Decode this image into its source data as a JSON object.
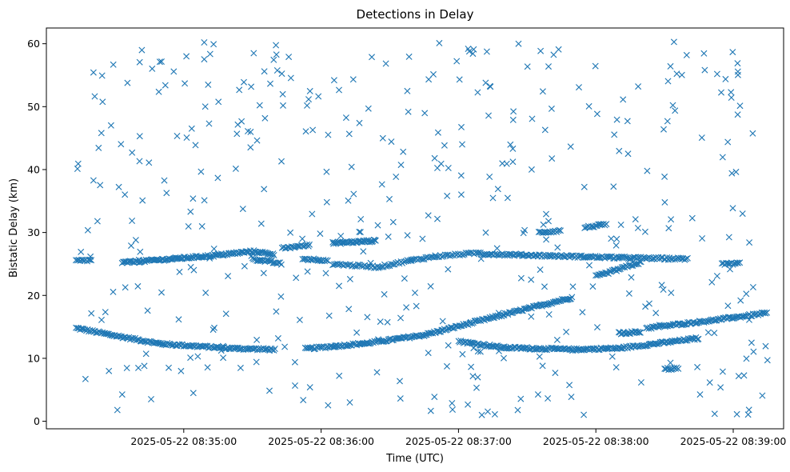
{
  "chart_data": {
    "type": "scatter",
    "title": "Detections in Delay",
    "xlabel": "Time (UTC)",
    "ylabel": "Bistatic Delay (km)",
    "marker": "x",
    "color": "#1f77b4",
    "grid": false,
    "xlim": [
      "2025-05-22 08:34:00",
      "2025-05-22 08:39:22"
    ],
    "ylim": [
      -1.2,
      62.5
    ],
    "x_ticks": [
      "2025-05-22 08:35:00",
      "2025-05-22 08:36:00",
      "2025-05-22 08:37:00",
      "2025-05-22 08:38:00",
      "2025-05-22 08:39:00"
    ],
    "y_ticks": [
      0,
      10,
      20,
      30,
      40,
      50,
      60
    ],
    "tracks": [
      {
        "points": [
          [
            "2025-05-22 08:34:13",
            14.8
          ],
          [
            "2025-05-22 08:34:30",
            13.6
          ],
          [
            "2025-05-22 08:34:50",
            12.3
          ],
          [
            "2025-05-22 08:35:20",
            11.6
          ],
          [
            "2025-05-22 08:35:40",
            11.4
          ]
        ],
        "step_s": 0.55
      },
      {
        "points": [
          [
            "2025-05-22 08:35:53",
            11.5
          ],
          [
            "2025-05-22 08:36:20",
            12.4
          ],
          [
            "2025-05-22 08:36:45",
            13.7
          ],
          [
            "2025-05-22 08:37:15",
            16.5
          ],
          [
            "2025-05-22 08:37:50",
            19.7
          ]
        ],
        "step_s": 0.55
      },
      {
        "points": [
          [
            "2025-05-22 08:37:00",
            12.7
          ],
          [
            "2025-05-22 08:37:20",
            11.7
          ],
          [
            "2025-05-22 08:37:50",
            11.4
          ],
          [
            "2025-05-22 08:38:10",
            11.6
          ],
          [
            "2025-05-22 08:38:30",
            12.5
          ],
          [
            "2025-05-22 08:38:45",
            13.2
          ]
        ],
        "step_s": 0.55
      },
      {
        "points": [
          [
            "2025-05-22 08:38:10",
            14.0
          ],
          [
            "2025-05-22 08:38:20",
            14.2
          ]
        ],
        "step_s": 0.5
      },
      {
        "points": [
          [
            "2025-05-22 08:38:22",
            14.8
          ],
          [
            "2025-05-22 08:38:50",
            16.0
          ],
          [
            "2025-05-22 08:39:15",
            17.2
          ]
        ],
        "step_s": 0.55
      },
      {
        "points": [
          [
            "2025-05-22 08:34:13",
            25.5
          ],
          [
            "2025-05-22 08:34:20",
            25.6
          ]
        ],
        "step_s": 0.6
      },
      {
        "points": [
          [
            "2025-05-22 08:34:33",
            25.2
          ],
          [
            "2025-05-22 08:34:55",
            25.8
          ],
          [
            "2025-05-22 08:35:12",
            26.3
          ],
          [
            "2025-05-22 08:35:30",
            27.0
          ],
          [
            "2025-05-22 08:35:40",
            26.5
          ]
        ],
        "step_s": 0.5
      },
      {
        "points": [
          [
            "2025-05-22 08:35:30",
            25.8
          ],
          [
            "2025-05-22 08:35:43",
            25.0
          ]
        ],
        "step_s": 0.6
      },
      {
        "points": [
          [
            "2025-05-22 08:35:43",
            27.5
          ],
          [
            "2025-05-22 08:35:55",
            28.0
          ]
        ],
        "step_s": 0.6
      },
      {
        "points": [
          [
            "2025-05-22 08:35:52",
            25.8
          ],
          [
            "2025-05-22 08:36:03",
            25.6
          ]
        ],
        "step_s": 0.6
      },
      {
        "points": [
          [
            "2025-05-22 08:36:05",
            28.3
          ],
          [
            "2025-05-22 08:36:24",
            28.7
          ]
        ],
        "step_s": 0.45
      },
      {
        "points": [
          [
            "2025-05-22 08:36:05",
            25.0
          ],
          [
            "2025-05-22 08:36:25",
            24.5
          ],
          [
            "2025-05-22 08:36:38",
            25.5
          ],
          [
            "2025-05-22 08:36:50",
            26.2
          ],
          [
            "2025-05-22 08:37:10",
            26.8
          ]
        ],
        "step_s": 0.7
      },
      {
        "points": [
          [
            "2025-05-22 08:37:10",
            26.6
          ],
          [
            "2025-05-22 08:37:40",
            26.3
          ],
          [
            "2025-05-22 08:38:10",
            26.0
          ],
          [
            "2025-05-22 08:38:40",
            25.8
          ]
        ],
        "step_s": 0.6
      },
      {
        "points": [
          [
            "2025-05-22 08:37:35",
            30.0
          ],
          [
            "2025-05-22 08:37:45",
            30.3
          ]
        ],
        "step_s": 0.6
      },
      {
        "points": [
          [
            "2025-05-22 08:37:55",
            30.8
          ],
          [
            "2025-05-22 08:38:05",
            31.3
          ]
        ],
        "step_s": 0.6
      },
      {
        "points": [
          [
            "2025-05-22 08:38:00",
            23.0
          ],
          [
            "2025-05-22 08:38:20",
            25.3
          ]
        ],
        "step_s": 0.6
      },
      {
        "points": [
          [
            "2025-05-22 08:38:55",
            25.0
          ],
          [
            "2025-05-22 08:39:03",
            25.1
          ]
        ],
        "step_s": 0.6
      },
      {
        "points": [
          [
            "2025-05-22 08:38:30",
            8.3
          ],
          [
            "2025-05-22 08:38:36",
            8.4
          ]
        ],
        "step_s": 0.6
      }
    ],
    "noise": {
      "count": 430,
      "y_range": [
        0.8,
        60.5
      ]
    }
  }
}
